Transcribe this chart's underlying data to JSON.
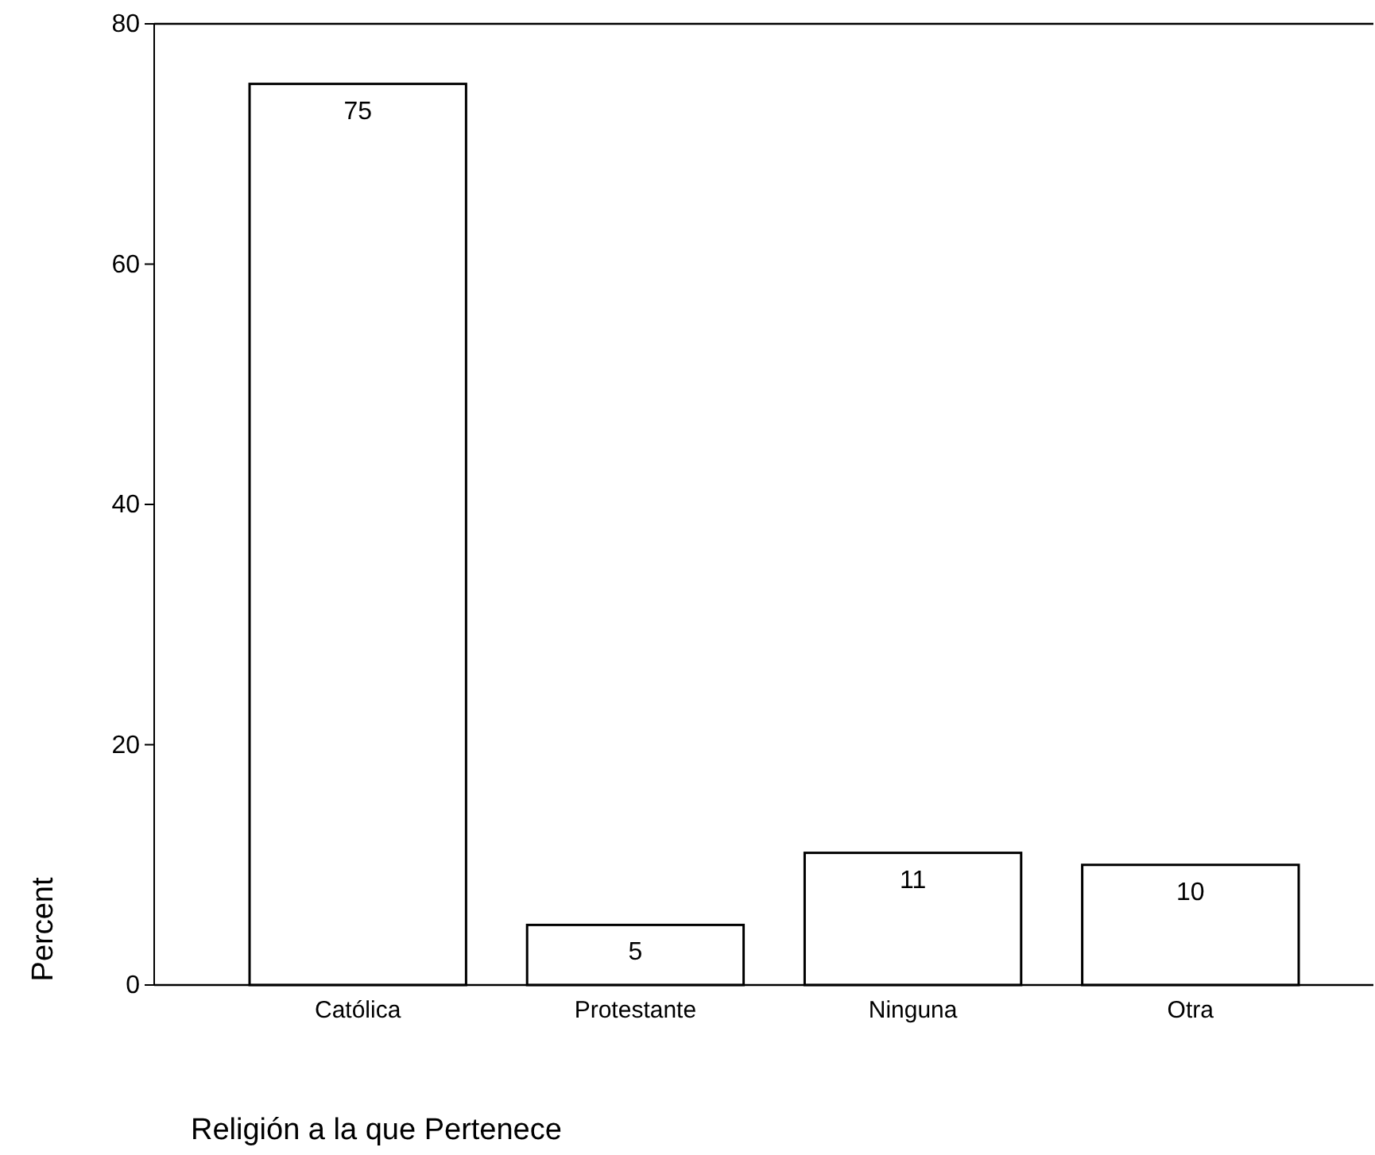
{
  "chart_data": {
    "type": "bar",
    "xlabel": "Religión a la que Pertenece",
    "ylabel": "Percent",
    "categories": [
      "Católica",
      "Protestante",
      "Ninguna",
      "Otra"
    ],
    "values": [
      75,
      5,
      11,
      10
    ],
    "color": "#ffffff",
    "ylim": [
      0,
      80
    ],
    "yticks": [
      0,
      20,
      40,
      60,
      80
    ],
    "grid": false,
    "data_labels": true
  }
}
